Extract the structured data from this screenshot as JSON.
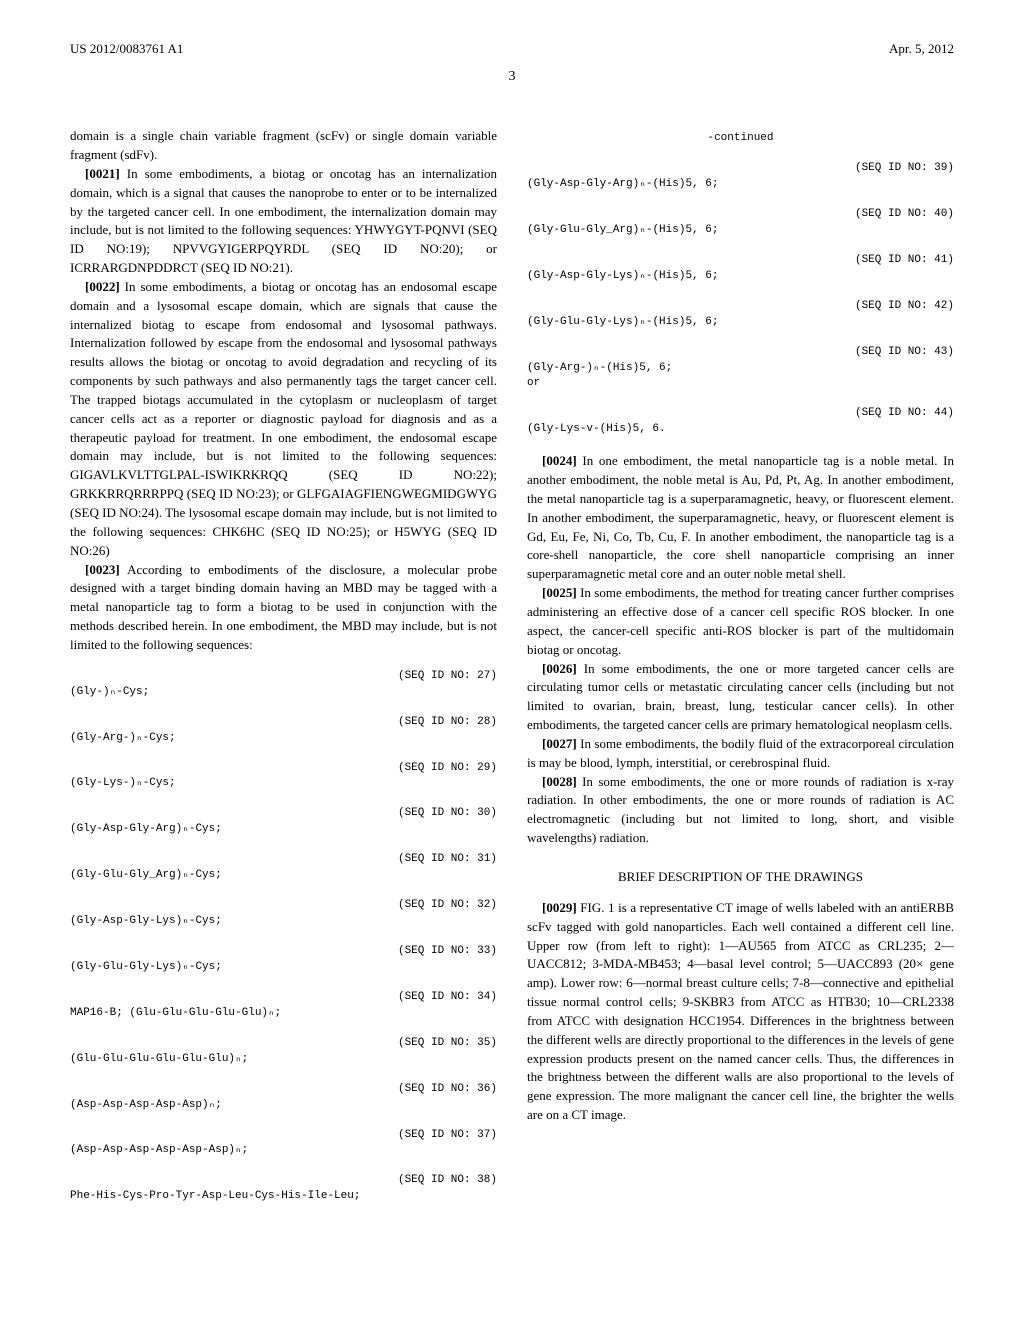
{
  "header": {
    "left": "US 2012/0083761 A1",
    "right": "Apr. 5, 2012"
  },
  "page_number": "3",
  "left_column": {
    "para_lead_in": "domain is a single chain variable fragment (scFv) or single domain variable fragment (sdFv).",
    "para_0021_num": "[0021]",
    "para_0021": "In some embodiments, a biotag or oncotag has an internalization domain, which is a signal that causes the nanoprobe to enter or to be internalized by the targeted cancer cell. In one embodiment, the internalization domain may include, but is not limited to the following sequences: YHWYGYT-PQNVI (SEQ ID NO:19); NPVVGYIGERPQYRDL (SEQ ID NO:20); or ICRRARGDNPDDRCT (SEQ ID NO:21).",
    "para_0022_num": "[0022]",
    "para_0022": "In some embodiments, a biotag or oncotag has an endosomal escape domain and a lysosomal escape domain, which are signals that cause the internalized biotag to escape from endosomal and lysosomal pathways. Internalization followed by escape from the endosomal and lysosomal pathways results allows the biotag or oncotag to avoid degradation and recycling of its components by such pathways and also permanently tags the target cancer cell. The trapped biotags accumulated in the cytoplasm or nucleoplasm of target cancer cells act as a reporter or diagnostic payload for diagnosis and as a therapeutic payload for treatment. In one embodiment, the endosomal escape domain may include, but is not limited to the following sequences: GIGAVLKVLTTGLPAL-ISWIKRKRQQ (SEQ ID NO:22); GRKKRRQRRRPPQ (SEQ ID NO:23); or GLFGAIAGFIENGWEGMIDGWYG (SEQ ID NO:24). The lysosomal escape domain may include, but is not limited to the following sequences: CHK6HC (SEQ ID NO:25); or H5WYG (SEQ ID NO:26)",
    "para_0023_num": "[0023]",
    "para_0023": "According to embodiments of the disclosure, a molecular probe designed with a target binding domain having an MBD may be tagged with a metal nanoparticle tag to form a biotag to be used in conjunction with the methods described herein. In one embodiment, the MBD may include, but is not limited to the following sequences:",
    "sequences": [
      {
        "id": "(SEQ ID NO: 27)",
        "body": "(Gly-)ₙ-Cys;"
      },
      {
        "id": "(SEQ ID NO: 28)",
        "body": "(Gly-Arg-)ₙ-Cys;"
      },
      {
        "id": "(SEQ ID NO: 29)",
        "body": "(Gly-Lys-)ₙ-Cys;"
      },
      {
        "id": "(SEQ ID NO: 30)",
        "body": "(Gly-Asp-Gly-Arg)ₙ-Cys;"
      },
      {
        "id": "(SEQ ID NO: 31)",
        "body": "(Gly-Glu-Gly_Arg)ₙ-Cys;"
      },
      {
        "id": "(SEQ ID NO: 32)",
        "body": "(Gly-Asp-Gly-Lys)ₙ-Cys;"
      },
      {
        "id": "(SEQ ID NO: 33)",
        "body": "(Gly-Glu-Gly-Lys)ₙ-Cys;"
      },
      {
        "id": "(SEQ ID NO: 34)",
        "body": "MAP16-B; (Glu-Glu-Glu-Glu-Glu)ₙ;"
      },
      {
        "id": "(SEQ ID NO: 35)",
        "body": "(Glu-Glu-Glu-Glu-Glu-Glu)ₙ;"
      },
      {
        "id": "(SEQ ID NO: 36)",
        "body": "(Asp-Asp-Asp-Asp-Asp)ₙ;"
      },
      {
        "id": "(SEQ ID NO: 37)",
        "body": "(Asp-Asp-Asp-Asp-Asp-Asp)ₙ;"
      },
      {
        "id": "(SEQ ID NO: 38)",
        "body": "Phe-His-Cys-Pro-Tyr-Asp-Leu-Cys-His-Ile-Leu;"
      }
    ]
  },
  "right_column": {
    "continued_label": "-continued",
    "sequences": [
      {
        "id": "(SEQ ID NO: 39)",
        "body": "(Gly-Asp-Gly-Arg)ₙ-(His)5, 6;"
      },
      {
        "id": "(SEQ ID NO: 40)",
        "body": "(Gly-Glu-Gly_Arg)ₙ-(His)5, 6;"
      },
      {
        "id": "(SEQ ID NO: 41)",
        "body": "(Gly-Asp-Gly-Lys)ₙ-(His)5, 6;"
      },
      {
        "id": "(SEQ ID NO: 42)",
        "body": "(Gly-Glu-Gly-Lys)ₙ-(His)5, 6;"
      },
      {
        "id": "(SEQ ID NO: 43)",
        "body": "(Gly-Arg-)ₙ-(His)5, 6;\nor"
      },
      {
        "id": "(SEQ ID NO: 44)",
        "body": "(Gly-Lys-v-(His)5, 6."
      }
    ],
    "para_0024_num": "[0024]",
    "para_0024": "In one embodiment, the metal nanoparticle tag is a noble metal. In another embodiment, the noble metal is Au, Pd, Pt, Ag. In another embodiment, the metal nanoparticle tag is a superparamagnetic, heavy, or fluorescent element. In another embodiment, the superparamagnetic, heavy, or fluorescent element is Gd, Eu, Fe, Ni, Co, Tb, Cu, F. In another embodiment, the nanoparticle tag is a core-shell nanoparticle, the core shell nanoparticle comprising an inner superparamagnetic metal core and an outer noble metal shell.",
    "para_0025_num": "[0025]",
    "para_0025": "In some embodiments, the method for treating cancer further comprises administering an effective dose of a cancer cell specific ROS blocker. In one aspect, the cancer-cell specific anti-ROS blocker is part of the multidomain biotag or oncotag.",
    "para_0026_num": "[0026]",
    "para_0026": "In some embodiments, the one or more targeted cancer cells are circulating tumor cells or metastatic circulating cancer cells (including but not limited to ovarian, brain, breast, lung, testicular cancer cells). In other embodiments, the targeted cancer cells are primary hematological neoplasm cells.",
    "para_0027_num": "[0027]",
    "para_0027": "In some embodiments, the bodily fluid of the extracorporeal circulation is may be blood, lymph, interstitial, or cerebrospinal fluid.",
    "para_0028_num": "[0028]",
    "para_0028": "In some embodiments, the one or more rounds of radiation is x-ray radiation. In other embodiments, the one or more rounds of radiation is AC electromagnetic (including but not limited to long, short, and visible wavelengths) radiation.",
    "section_heading": "BRIEF DESCRIPTION OF THE DRAWINGS",
    "para_0029_num": "[0029]",
    "para_0029": "FIG. 1 is a representative CT image of wells labeled with an antiERBB scFv tagged with gold nanoparticles. Each well contained a different cell line. Upper row (from left to right): 1—AU565 from ATCC as CRL235; 2—UACC812; 3-MDA-MB453; 4—basal level control; 5—UACC893 (20× gene amp). Lower row: 6—normal breast culture cells; 7-8—connective and epithelial tissue normal control cells; 9-SKBR3 from ATCC as HTB30; 10—CRL2338 from ATCC with designation HCC1954. Differences in the brightness between the different wells are directly proportional to the differences in the levels of gene expression products present on the named cancer cells. Thus, the differences in the brightness between the different walls are also proportional to the levels of gene expression. The more malignant the cancer cell line, the brighter the wells are on a CT image."
  }
}
